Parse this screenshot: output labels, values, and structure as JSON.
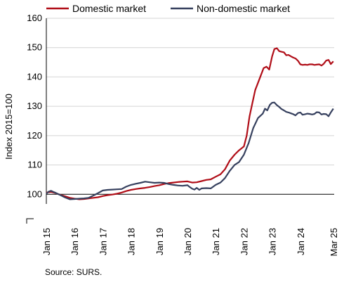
{
  "chart_data": {
    "type": "line",
    "ylabel": "Index 2015=100",
    "ylim": [
      90,
      160
    ],
    "yticks": [
      100,
      110,
      120,
      130,
      140,
      150,
      160
    ],
    "xlim": [
      2015.0,
      2025.2
    ],
    "xticks": [
      {
        "x": 2015,
        "label": "Jan 15"
      },
      {
        "x": 2016,
        "label": "Jan 16"
      },
      {
        "x": 2017,
        "label": "Jan 17"
      },
      {
        "x": 2018,
        "label": "Jan 18"
      },
      {
        "x": 2019,
        "label": "Jan 19"
      },
      {
        "x": 2020,
        "label": "Jan 20"
      },
      {
        "x": 2021,
        "label": "Jan 21"
      },
      {
        "x": 2022,
        "label": "Jan 22"
      },
      {
        "x": 2023,
        "label": "Jan 23"
      },
      {
        "x": 2024,
        "label": "Jan 24"
      },
      {
        "x": 2025.17,
        "label": "Mar 25"
      }
    ],
    "reference_line": 100,
    "series": [
      {
        "name": "Domestic market",
        "color": "#b00d17",
        "points": [
          [
            2015.0,
            100.6
          ],
          [
            2015.17,
            100.8
          ],
          [
            2015.33,
            100.4
          ],
          [
            2015.5,
            99.8
          ],
          [
            2015.67,
            99.3
          ],
          [
            2015.83,
            98.8
          ],
          [
            2016.0,
            98.5
          ],
          [
            2016.17,
            98.3
          ],
          [
            2016.33,
            98.4
          ],
          [
            2016.5,
            98.6
          ],
          [
            2016.67,
            98.8
          ],
          [
            2016.83,
            99.0
          ],
          [
            2017.0,
            99.4
          ],
          [
            2017.17,
            99.7
          ],
          [
            2017.33,
            99.9
          ],
          [
            2017.5,
            100.2
          ],
          [
            2017.67,
            100.6
          ],
          [
            2017.83,
            101.1
          ],
          [
            2018.0,
            101.5
          ],
          [
            2018.17,
            101.8
          ],
          [
            2018.33,
            102.0
          ],
          [
            2018.5,
            102.2
          ],
          [
            2018.67,
            102.5
          ],
          [
            2018.83,
            102.8
          ],
          [
            2019.0,
            103.1
          ],
          [
            2019.17,
            103.5
          ],
          [
            2019.33,
            103.8
          ],
          [
            2019.5,
            104.0
          ],
          [
            2019.67,
            104.2
          ],
          [
            2019.83,
            104.3
          ],
          [
            2020.0,
            104.4
          ],
          [
            2020.17,
            104.0
          ],
          [
            2020.33,
            104.1
          ],
          [
            2020.5,
            104.5
          ],
          [
            2020.67,
            104.9
          ],
          [
            2020.83,
            105.1
          ],
          [
            2021.0,
            106.0
          ],
          [
            2021.17,
            106.8
          ],
          [
            2021.33,
            108.5
          ],
          [
            2021.5,
            111.5
          ],
          [
            2021.67,
            113.5
          ],
          [
            2021.83,
            115.0
          ],
          [
            2022.0,
            116.3
          ],
          [
            2022.1,
            120.0
          ],
          [
            2022.2,
            126.5
          ],
          [
            2022.3,
            131.0
          ],
          [
            2022.4,
            135.5
          ],
          [
            2022.5,
            138.0
          ],
          [
            2022.6,
            140.5
          ],
          [
            2022.7,
            143.0
          ],
          [
            2022.8,
            143.5
          ],
          [
            2022.9,
            142.5
          ],
          [
            2023.0,
            147.0
          ],
          [
            2023.08,
            149.5
          ],
          [
            2023.17,
            149.8
          ],
          [
            2023.25,
            148.8
          ],
          [
            2023.33,
            148.6
          ],
          [
            2023.42,
            148.4
          ],
          [
            2023.5,
            147.4
          ],
          [
            2023.58,
            147.5
          ],
          [
            2023.67,
            147.0
          ],
          [
            2023.75,
            146.6
          ],
          [
            2023.83,
            146.3
          ],
          [
            2023.92,
            145.5
          ],
          [
            2024.0,
            144.3
          ],
          [
            2024.08,
            144.1
          ],
          [
            2024.17,
            144.2
          ],
          [
            2024.25,
            144.1
          ],
          [
            2024.33,
            144.3
          ],
          [
            2024.42,
            144.3
          ],
          [
            2024.5,
            144.1
          ],
          [
            2024.58,
            144.2
          ],
          [
            2024.67,
            144.3
          ],
          [
            2024.75,
            143.9
          ],
          [
            2024.83,
            144.5
          ],
          [
            2024.92,
            145.6
          ],
          [
            2025.0,
            145.8
          ],
          [
            2025.08,
            144.4
          ],
          [
            2025.17,
            145.3
          ]
        ]
      },
      {
        "name": "Non-domestic market",
        "color": "#36405e",
        "points": [
          [
            2015.0,
            100.2
          ],
          [
            2015.08,
            100.9
          ],
          [
            2015.17,
            101.2
          ],
          [
            2015.25,
            100.8
          ],
          [
            2015.33,
            100.5
          ],
          [
            2015.5,
            99.7
          ],
          [
            2015.67,
            98.9
          ],
          [
            2015.83,
            98.3
          ],
          [
            2016.0,
            98.4
          ],
          [
            2016.17,
            98.5
          ],
          [
            2016.33,
            98.6
          ],
          [
            2016.5,
            98.8
          ],
          [
            2016.67,
            99.6
          ],
          [
            2016.83,
            100.4
          ],
          [
            2017.0,
            101.3
          ],
          [
            2017.17,
            101.5
          ],
          [
            2017.33,
            101.6
          ],
          [
            2017.5,
            101.7
          ],
          [
            2017.67,
            101.8
          ],
          [
            2017.83,
            102.6
          ],
          [
            2018.0,
            103.2
          ],
          [
            2018.17,
            103.6
          ],
          [
            2018.33,
            103.9
          ],
          [
            2018.5,
            104.3
          ],
          [
            2018.67,
            104.1
          ],
          [
            2018.83,
            103.9
          ],
          [
            2019.0,
            104.0
          ],
          [
            2019.17,
            103.9
          ],
          [
            2019.33,
            103.5
          ],
          [
            2019.5,
            103.2
          ],
          [
            2019.67,
            103.0
          ],
          [
            2019.83,
            102.9
          ],
          [
            2020.0,
            103.1
          ],
          [
            2020.08,
            102.5
          ],
          [
            2020.17,
            101.9
          ],
          [
            2020.25,
            101.6
          ],
          [
            2020.33,
            102.2
          ],
          [
            2020.42,
            101.5
          ],
          [
            2020.5,
            102.0
          ],
          [
            2020.67,
            102.1
          ],
          [
            2020.83,
            102.0
          ],
          [
            2021.0,
            103.2
          ],
          [
            2021.17,
            104.0
          ],
          [
            2021.33,
            105.5
          ],
          [
            2021.5,
            108.0
          ],
          [
            2021.67,
            110.0
          ],
          [
            2021.83,
            111.0
          ],
          [
            2022.0,
            113.5
          ],
          [
            2022.17,
            117.5
          ],
          [
            2022.33,
            122.5
          ],
          [
            2022.5,
            126.0
          ],
          [
            2022.67,
            127.5
          ],
          [
            2022.75,
            129.2
          ],
          [
            2022.83,
            128.6
          ],
          [
            2022.92,
            130.5
          ],
          [
            2023.0,
            131.2
          ],
          [
            2023.08,
            131.3
          ],
          [
            2023.17,
            130.4
          ],
          [
            2023.25,
            129.8
          ],
          [
            2023.33,
            129.1
          ],
          [
            2023.42,
            128.6
          ],
          [
            2023.5,
            128.1
          ],
          [
            2023.58,
            127.9
          ],
          [
            2023.67,
            127.6
          ],
          [
            2023.75,
            127.3
          ],
          [
            2023.83,
            126.9
          ],
          [
            2023.92,
            127.7
          ],
          [
            2024.0,
            127.9
          ],
          [
            2024.08,
            127.1
          ],
          [
            2024.17,
            127.3
          ],
          [
            2024.25,
            127.5
          ],
          [
            2024.33,
            127.4
          ],
          [
            2024.42,
            127.2
          ],
          [
            2024.5,
            127.4
          ],
          [
            2024.58,
            128.0
          ],
          [
            2024.67,
            127.9
          ],
          [
            2024.75,
            127.2
          ],
          [
            2024.83,
            127.4
          ],
          [
            2024.92,
            127.3
          ],
          [
            2025.0,
            126.6
          ],
          [
            2025.08,
            127.9
          ],
          [
            2025.17,
            129.2
          ]
        ]
      }
    ]
  },
  "legend": {
    "domestic_label": "Domestic market",
    "nondomestic_label": "Non-domestic market"
  },
  "source": "Source: SURS."
}
